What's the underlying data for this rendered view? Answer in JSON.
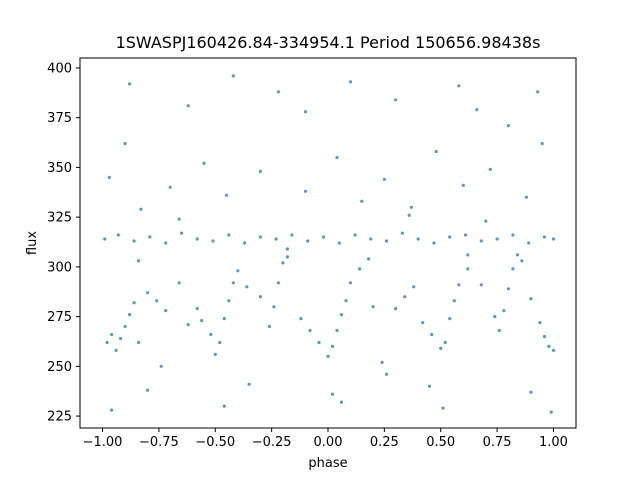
{
  "chart_data": {
    "type": "scatter",
    "title": "1SWASPJ160426.84-334954.1 Period 150656.98438s",
    "xlabel": "phase",
    "ylabel": "flux",
    "xlim": [
      -1.1,
      1.1
    ],
    "ylim": [
      219,
      405
    ],
    "xticks": [
      -1.0,
      -0.75,
      -0.5,
      -0.25,
      0.0,
      0.25,
      0.5,
      0.75,
      1.0
    ],
    "xtick_labels": [
      "−1.00",
      "−0.75",
      "−0.50",
      "−0.25",
      "0.00",
      "0.25",
      "0.50",
      "0.75",
      "1.00"
    ],
    "yticks": [
      225,
      250,
      275,
      300,
      325,
      350,
      375,
      400
    ],
    "ytick_labels": [
      "225",
      "250",
      "275",
      "300",
      "325",
      "350",
      "375",
      "400"
    ],
    "grid": false,
    "legend": "none",
    "marker_color": "#1f77b4",
    "series": [
      {
        "points": [
          [
            -0.99,
            314
          ],
          [
            -0.93,
            316
          ],
          [
            -0.86,
            313
          ],
          [
            -0.79,
            315
          ],
          [
            -0.72,
            312
          ],
          [
            -0.65,
            317
          ],
          [
            -0.58,
            314
          ],
          [
            -0.51,
            313
          ],
          [
            -0.44,
            316
          ],
          [
            -0.37,
            312
          ],
          [
            -0.3,
            315
          ],
          [
            -0.23,
            314
          ],
          [
            -0.16,
            316
          ],
          [
            -0.09,
            313
          ],
          [
            -0.02,
            315
          ],
          [
            0.05,
            312
          ],
          [
            0.12,
            316
          ],
          [
            0.19,
            314
          ],
          [
            0.26,
            313
          ],
          [
            0.33,
            317
          ],
          [
            0.4,
            314
          ],
          [
            0.47,
            312
          ],
          [
            0.54,
            315
          ],
          [
            0.61,
            316
          ],
          [
            0.68,
            313
          ],
          [
            0.75,
            314
          ],
          [
            0.82,
            316
          ],
          [
            0.89,
            312
          ],
          [
            0.96,
            315
          ],
          [
            1.0,
            314
          ],
          [
            -0.98,
            262
          ],
          [
            -0.96,
            266
          ],
          [
            -0.94,
            258
          ],
          [
            -0.92,
            264
          ],
          [
            -0.9,
            270
          ],
          [
            -0.88,
            276
          ],
          [
            -0.86,
            282
          ],
          [
            -0.84,
            262
          ],
          [
            -0.8,
            287
          ],
          [
            -0.76,
            283
          ],
          [
            -0.74,
            250
          ],
          [
            -0.72,
            278
          ],
          [
            -0.66,
            292
          ],
          [
            -0.62,
            271
          ],
          [
            -0.58,
            279
          ],
          [
            -0.56,
            273
          ],
          [
            -0.52,
            266
          ],
          [
            -0.5,
            256
          ],
          [
            -0.48,
            262
          ],
          [
            -0.46,
            274
          ],
          [
            -0.44,
            283
          ],
          [
            -0.42,
            292
          ],
          [
            -0.4,
            298
          ],
          [
            -0.36,
            290
          ],
          [
            -0.3,
            285
          ],
          [
            -0.26,
            270
          ],
          [
            -0.24,
            280
          ],
          [
            -0.22,
            292
          ],
          [
            -0.2,
            302
          ],
          [
            -0.18,
            309
          ],
          [
            -0.12,
            274
          ],
          [
            -0.08,
            268
          ],
          [
            -0.04,
            262
          ],
          [
            0.0,
            255
          ],
          [
            0.02,
            260
          ],
          [
            0.04,
            268
          ],
          [
            0.06,
            276
          ],
          [
            0.08,
            283
          ],
          [
            0.1,
            292
          ],
          [
            0.14,
            299
          ],
          [
            0.2,
            280
          ],
          [
            0.24,
            252
          ],
          [
            0.26,
            246
          ],
          [
            0.3,
            279
          ],
          [
            0.34,
            285
          ],
          [
            0.38,
            290
          ],
          [
            0.42,
            272
          ],
          [
            0.46,
            266
          ],
          [
            0.5,
            259
          ],
          [
            0.52,
            262
          ],
          [
            0.54,
            274
          ],
          [
            0.56,
            283
          ],
          [
            0.58,
            291
          ],
          [
            0.62,
            299
          ],
          [
            0.68,
            291
          ],
          [
            0.74,
            275
          ],
          [
            0.76,
            268
          ],
          [
            0.78,
            278
          ],
          [
            0.8,
            289
          ],
          [
            0.82,
            299
          ],
          [
            0.84,
            306
          ],
          [
            0.9,
            284
          ],
          [
            0.94,
            272
          ],
          [
            0.96,
            265
          ],
          [
            0.98,
            260
          ],
          [
            1.0,
            258
          ],
          [
            -0.97,
            345
          ],
          [
            -0.9,
            362
          ],
          [
            -0.83,
            329
          ],
          [
            -0.7,
            340
          ],
          [
            -0.55,
            352
          ],
          [
            -0.45,
            336
          ],
          [
            -0.3,
            348
          ],
          [
            -0.22,
            388
          ],
          [
            -0.1,
            338
          ],
          [
            0.04,
            355
          ],
          [
            0.15,
            333
          ],
          [
            0.25,
            344
          ],
          [
            0.37,
            330
          ],
          [
            0.48,
            358
          ],
          [
            0.6,
            341
          ],
          [
            0.72,
            349
          ],
          [
            0.8,
            371
          ],
          [
            0.88,
            335
          ],
          [
            0.95,
            362
          ],
          [
            -0.88,
            392
          ],
          [
            -0.42,
            396
          ],
          [
            0.1,
            393
          ],
          [
            0.58,
            391
          ],
          [
            0.93,
            388
          ],
          [
            -0.8,
            238
          ],
          [
            -0.35,
            241
          ],
          [
            0.02,
            236
          ],
          [
            0.45,
            240
          ],
          [
            0.9,
            237
          ],
          [
            -0.96,
            228
          ],
          [
            -0.46,
            230
          ],
          [
            0.06,
            232
          ],
          [
            0.51,
            229
          ],
          [
            0.99,
            227
          ],
          [
            -0.62,
            381
          ],
          [
            -0.1,
            378
          ],
          [
            0.3,
            384
          ],
          [
            0.66,
            379
          ],
          [
            -0.84,
            303
          ],
          [
            -0.18,
            305
          ],
          [
            0.18,
            304
          ],
          [
            0.62,
            306
          ],
          [
            0.86,
            303
          ],
          [
            -0.66,
            324
          ],
          [
            0.36,
            326
          ],
          [
            0.7,
            323
          ]
        ]
      }
    ]
  }
}
